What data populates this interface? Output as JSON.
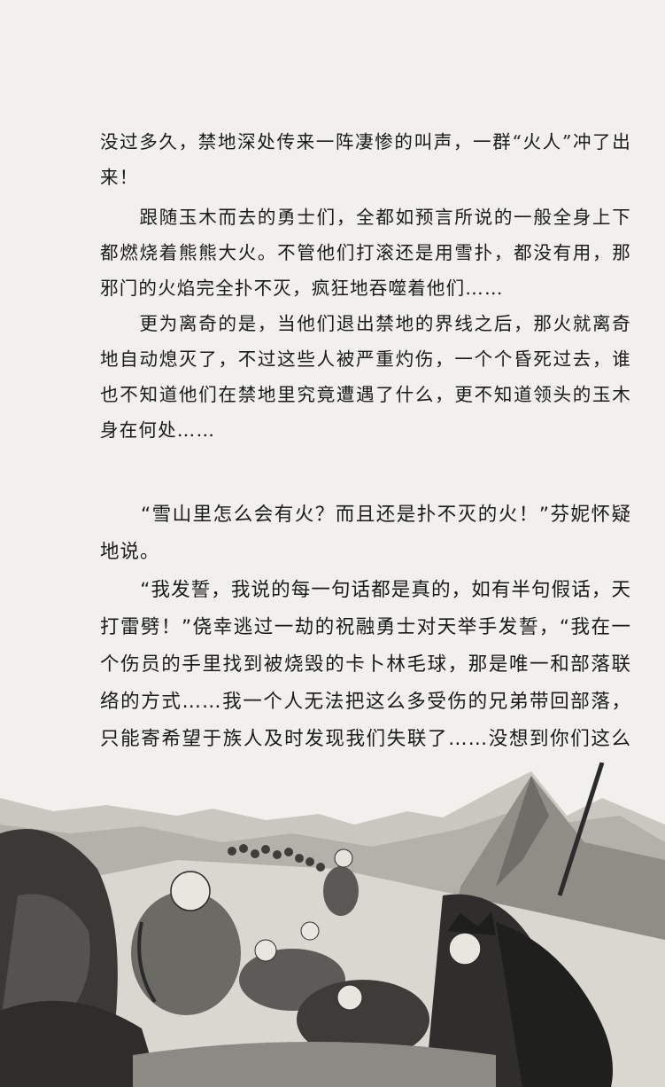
{
  "paragraphs": [
    "没过多久，禁地深处传来一阵凄惨的叫声，一群“火人”冲了出来！",
    "　　跟随玉木而去的勇士们，全都如预言所说的一般全身上下都燃烧着熊熊大火。不管他们打滚还是用雪扑，都没有用，那邪门的火焰完全扑不灭，疯狂地吞噬着他们……",
    "　　更为离奇的是，当他们退出禁地的界线之后，那火就离奇地自动熄灭了，不过这些人被严重灼伤，一个个昏死过去，谁也不知道他们在禁地里究竟遭遇了什么，更不知道领头的玉木身在何处……",
    "　　“雪山里怎么会有火？而且还是扑不灭的火！”芬妮怀疑地说。",
    "　　“我发誓，我说的每一句话都是真的，如有半句假话，天打雷劈！”侥幸逃过一劫的祝融勇士对天举手发誓，“我在一个伤员的手里找到被烧毁的卡卜林毛球，那是唯一和部落联络的方式……我一个人无法把这么多受伤的兄弟带回部落，只能寄希望于族人及时发现我们失联了……没想到你们这么快就来了，还是酋长和青岚战神带队……"
  ]
}
